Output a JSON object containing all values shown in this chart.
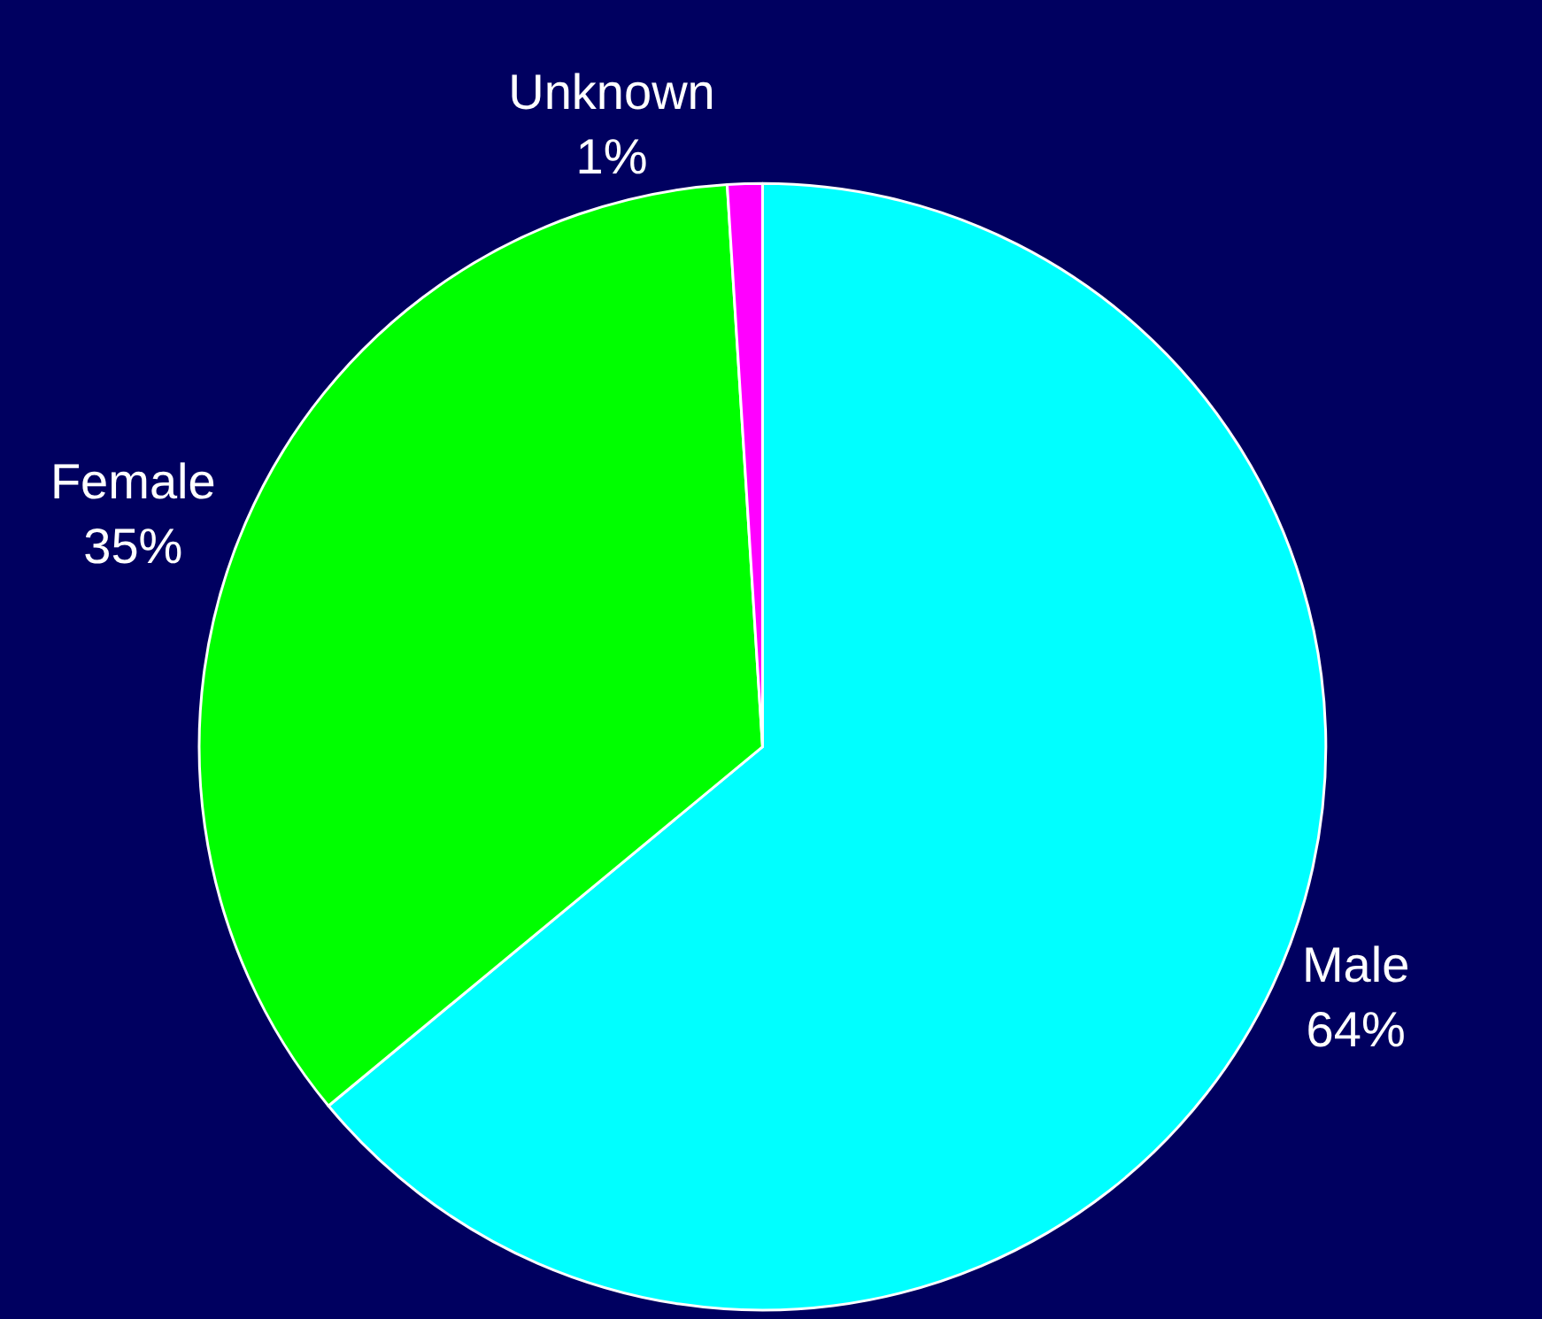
{
  "chart_data": {
    "type": "pie",
    "categories": [
      "Male",
      "Female",
      "Unknown"
    ],
    "values": [
      64,
      35,
      1
    ],
    "colors": [
      "#00ffff",
      "#00ff00",
      "#ff00ff"
    ],
    "value_labels": [
      "64%",
      "35%",
      "1%"
    ],
    "legend": false
  }
}
